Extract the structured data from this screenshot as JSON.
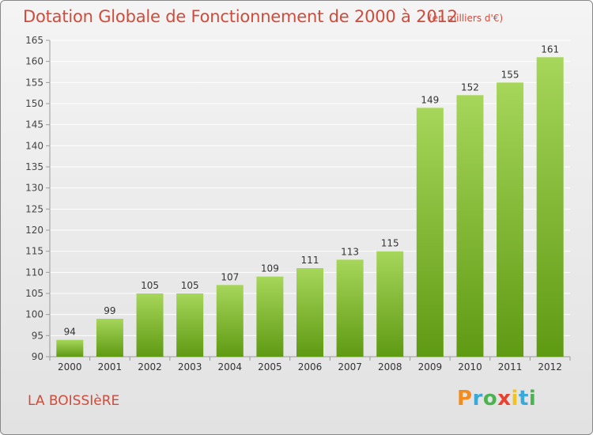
{
  "header": {
    "title": "Dotation Globale de Fonctionnement de 2000 à 2012",
    "unit": "(en milliers d'€)"
  },
  "footer": {
    "commune": "LA BOISSIèRE",
    "brand": "Proxiti"
  },
  "colors": {
    "title": "#d14b3a",
    "bar_light": "#a6d65a",
    "bar_dark": "#5f9a13",
    "grid": "#ffffff",
    "background": "#ececec",
    "brand_letters": [
      "#f28c1e",
      "#3aa9d8",
      "#4bb34f",
      "#e8412f",
      "#f2c21e",
      "#3aa9d8",
      "#4bb34f"
    ]
  },
  "chart_data": {
    "type": "bar",
    "categories": [
      "2000",
      "2001",
      "2002",
      "2003",
      "2004",
      "2005",
      "2006",
      "2007",
      "2008",
      "2009",
      "2010",
      "2011",
      "2012"
    ],
    "values": [
      94,
      99,
      105,
      105,
      107,
      109,
      111,
      113,
      115,
      149,
      152,
      155,
      161
    ],
    "title": "Dotation Globale de Fonctionnement de 2000 à 2012",
    "subtitle": "(en milliers d'€)",
    "xlabel": "",
    "ylabel": "",
    "ylim": [
      90,
      165
    ],
    "yticks": [
      90,
      95,
      100,
      105,
      110,
      115,
      120,
      125,
      130,
      135,
      140,
      145,
      150,
      155,
      160,
      165
    ],
    "grid": true,
    "data_labels": true
  }
}
